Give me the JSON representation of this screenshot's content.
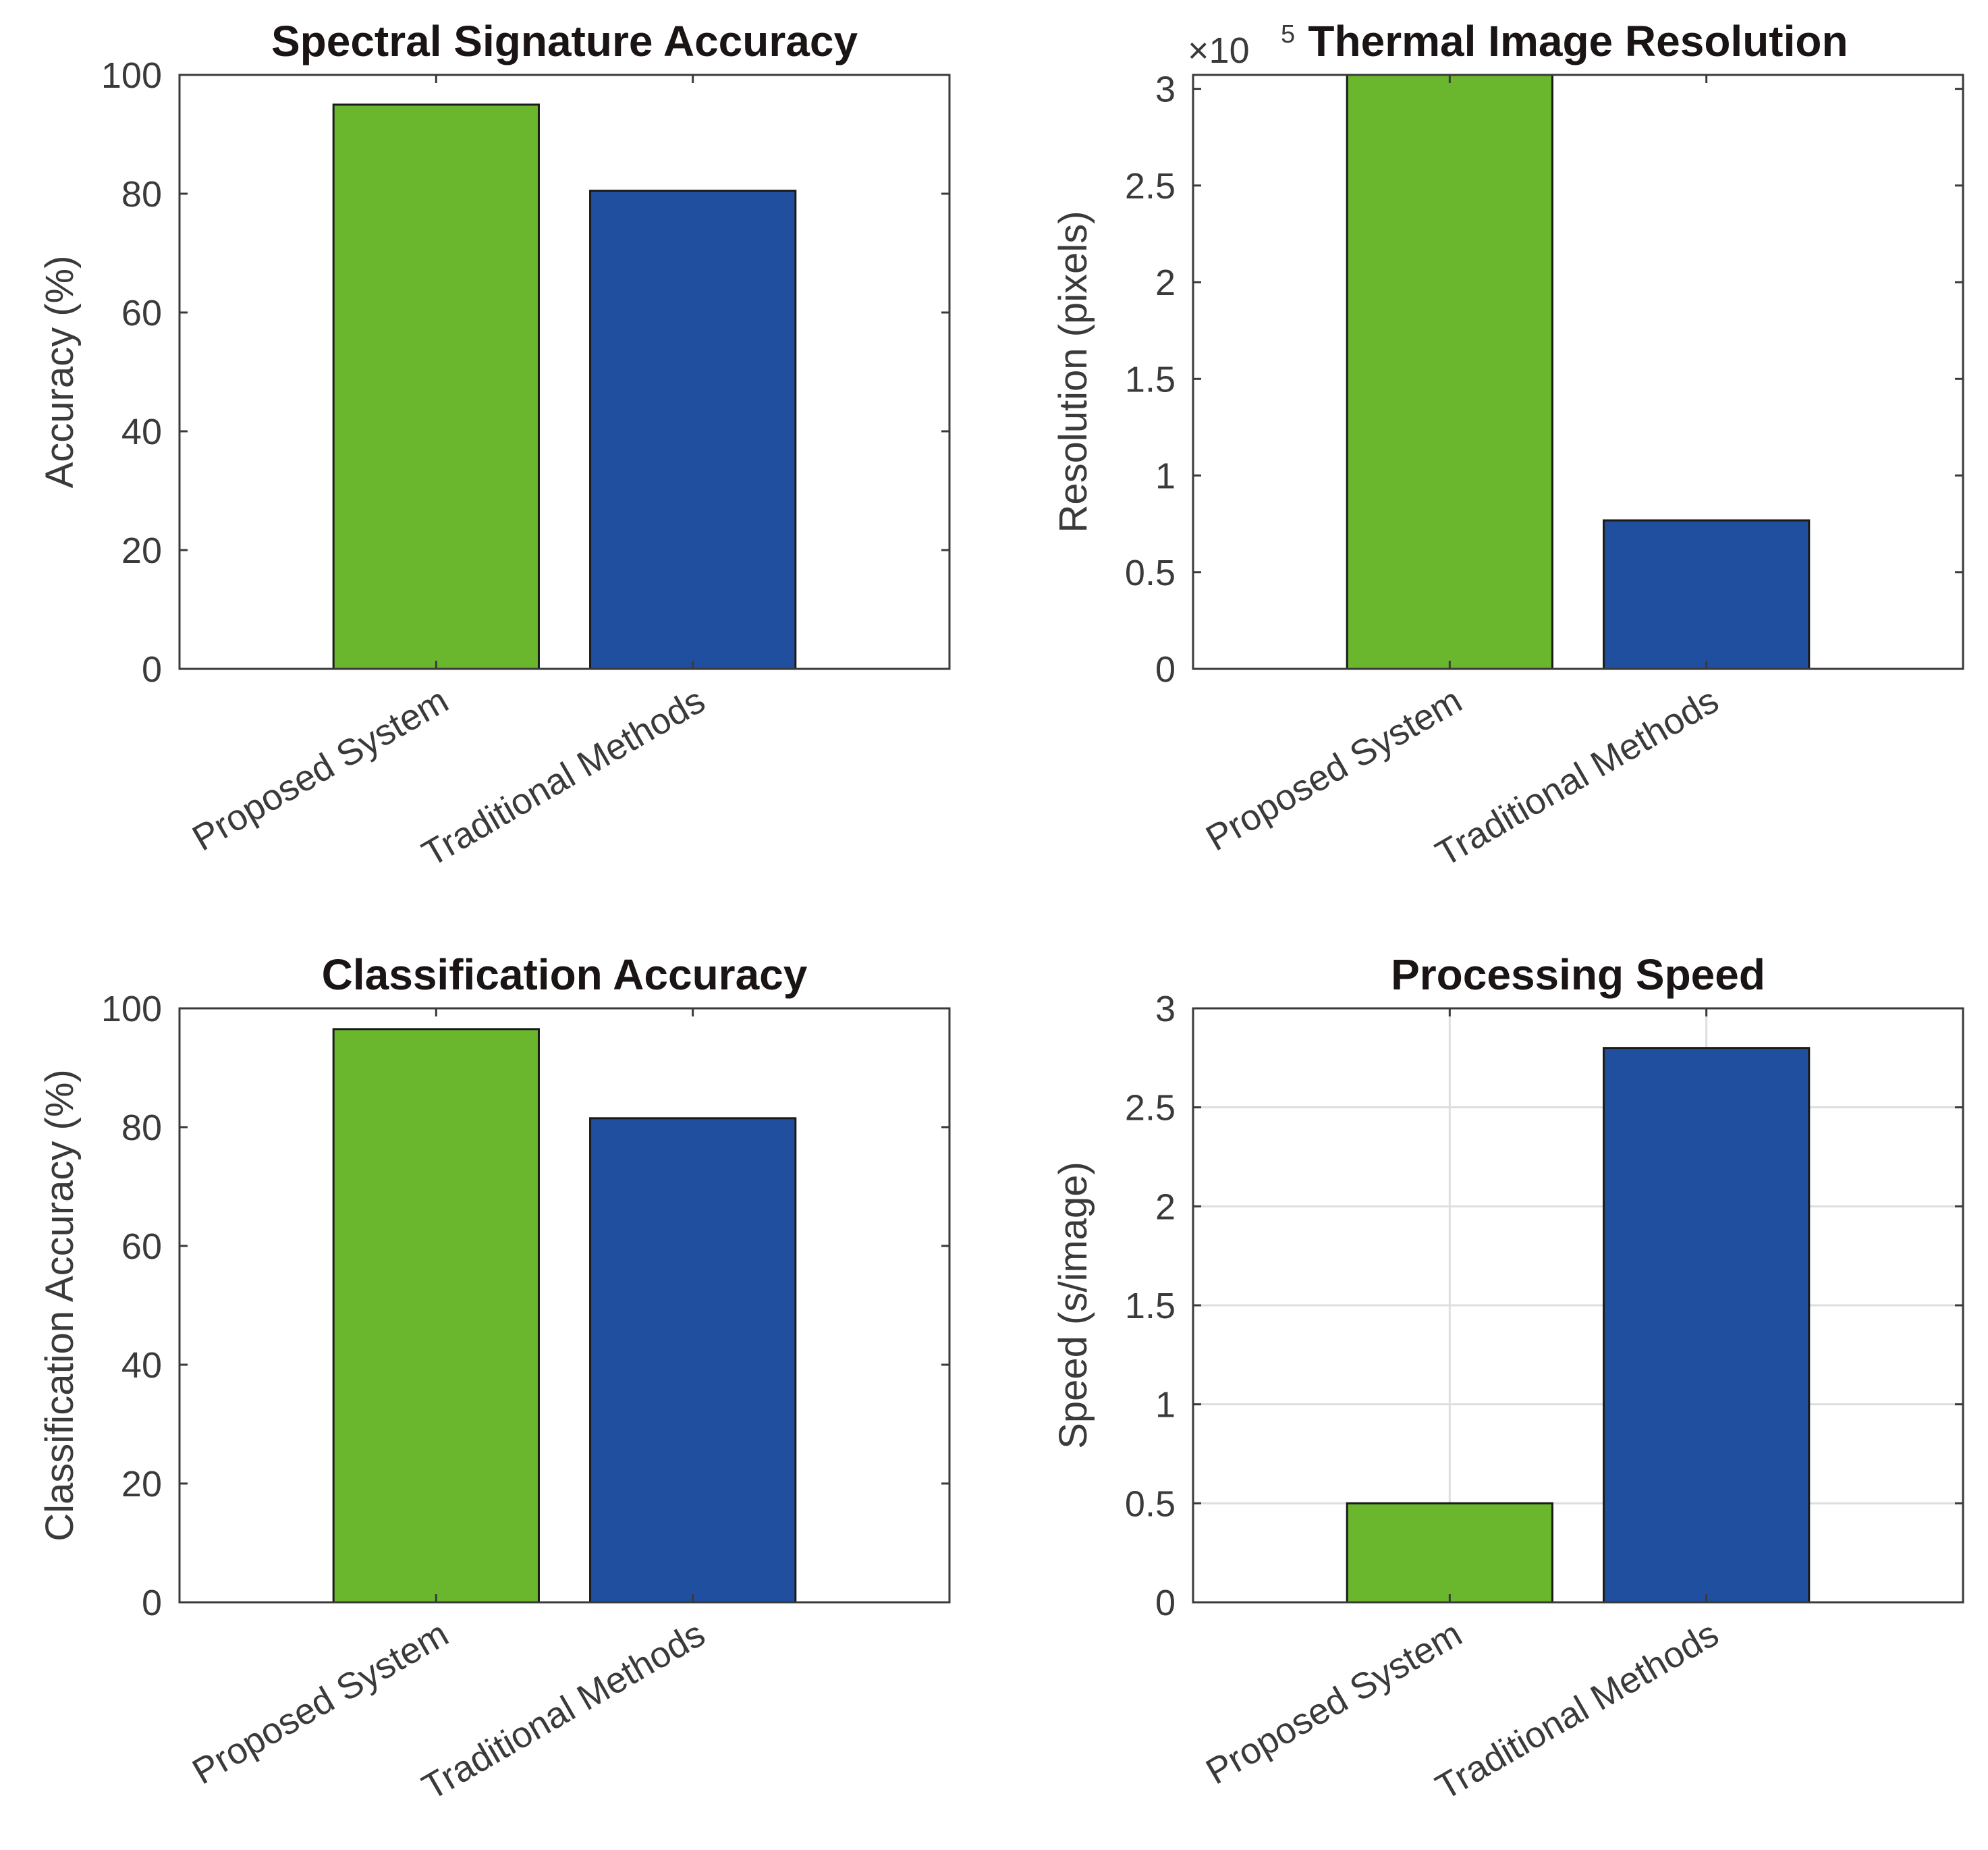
{
  "colors": {
    "proposed": "#6ab72e",
    "traditional": "#204fa0",
    "axis": "#3a3a3a",
    "grid": "#dedede",
    "edge": "#1a1a1a"
  },
  "chart_data": [
    {
      "type": "bar",
      "title": "Spectral Signature Accuracy",
      "categories": [
        "Proposed System",
        "Traditional Methods"
      ],
      "values": [
        95,
        80.5
      ],
      "xlabel": "",
      "ylabel": "Accuracy (%)",
      "ylim": [
        0,
        100
      ],
      "yticks": [
        0,
        20,
        40,
        60,
        80,
        100
      ],
      "ytick_labels": [
        "0",
        "20",
        "40",
        "60",
        "80",
        "100"
      ],
      "grid": false
    },
    {
      "type": "bar",
      "title": "Thermal Image Resolution",
      "categories": [
        "Proposed System",
        "Traditional Methods"
      ],
      "values": [
        307200,
        76800
      ],
      "xlabel": "",
      "ylabel": "Resolution (pixels)",
      "ylim": [
        0,
        307200
      ],
      "yticks": [
        0,
        50000,
        100000,
        150000,
        200000,
        250000,
        300000
      ],
      "ytick_labels": [
        "0",
        "0.5",
        "1",
        "1.5",
        "2",
        "2.5",
        "3"
      ],
      "exponent_base": "×10",
      "exponent_power": "5",
      "grid": false
    },
    {
      "type": "bar",
      "title": "Classification Accuracy",
      "categories": [
        "Proposed System",
        "Traditional Methods"
      ],
      "values": [
        96.5,
        81.5
      ],
      "xlabel": "",
      "ylabel": "Classification Accuracy (%)",
      "ylim": [
        0,
        100
      ],
      "yticks": [
        0,
        20,
        40,
        60,
        80,
        100
      ],
      "ytick_labels": [
        "0",
        "20",
        "40",
        "60",
        "80",
        "100"
      ],
      "grid": false
    },
    {
      "type": "bar",
      "title": "Processing Speed",
      "categories": [
        "Proposed System",
        "Traditional Methods"
      ],
      "values": [
        0.5,
        2.8
      ],
      "xlabel": "",
      "ylabel": "Speed (s/image)",
      "ylim": [
        0,
        3
      ],
      "yticks": [
        0,
        0.5,
        1,
        1.5,
        2,
        2.5,
        3
      ],
      "ytick_labels": [
        "0",
        "0.5",
        "1",
        "1.5",
        "2",
        "2.5",
        "3"
      ],
      "grid": true
    }
  ]
}
